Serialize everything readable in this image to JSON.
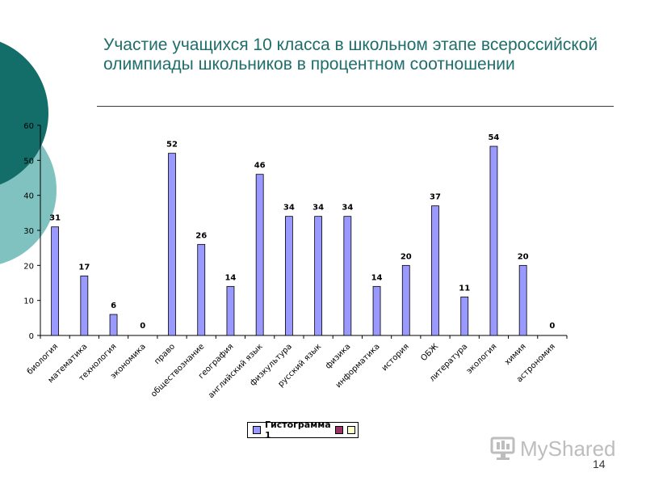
{
  "slide": {
    "title": "Участие учащихся 10 класса в школьном этапе всероссийской олимпиады школьников в процентном соотношении",
    "page_number": "14"
  },
  "legend": {
    "entries": [
      {
        "label": "Гистограмма 1",
        "color": "#9999ff"
      },
      {
        "label": "",
        "color": "#993366"
      },
      {
        "label": "",
        "color": "#ffffcc"
      }
    ]
  },
  "watermark": {
    "text": "MyShared",
    "icon": "monitor-icon"
  },
  "colors": {
    "title": "#1f6e6b",
    "bar": "#9999ff",
    "deco_dark": "#136e6a",
    "deco_light": "#7fc2c0"
  },
  "chart_data": {
    "type": "bar",
    "categories": [
      "биология",
      "математика",
      "технология",
      "экономика",
      "право",
      "обществознание",
      "география",
      "английский язык",
      "физкультура",
      "русский язык",
      "физика",
      "информатика",
      "история",
      "ОБЖ",
      "литература",
      "экология",
      "химия",
      "астрономия"
    ],
    "series": [
      {
        "name": "Гистограмма 1",
        "values": [
          31,
          17,
          6,
          0,
          52,
          26,
          14,
          46,
          34,
          34,
          34,
          14,
          20,
          37,
          11,
          54,
          20,
          0
        ]
      }
    ],
    "ylim": [
      0,
      60
    ],
    "yticks": [
      0,
      10,
      20,
      30,
      40,
      50,
      60
    ],
    "legend_position": "bottom",
    "grid": false
  }
}
